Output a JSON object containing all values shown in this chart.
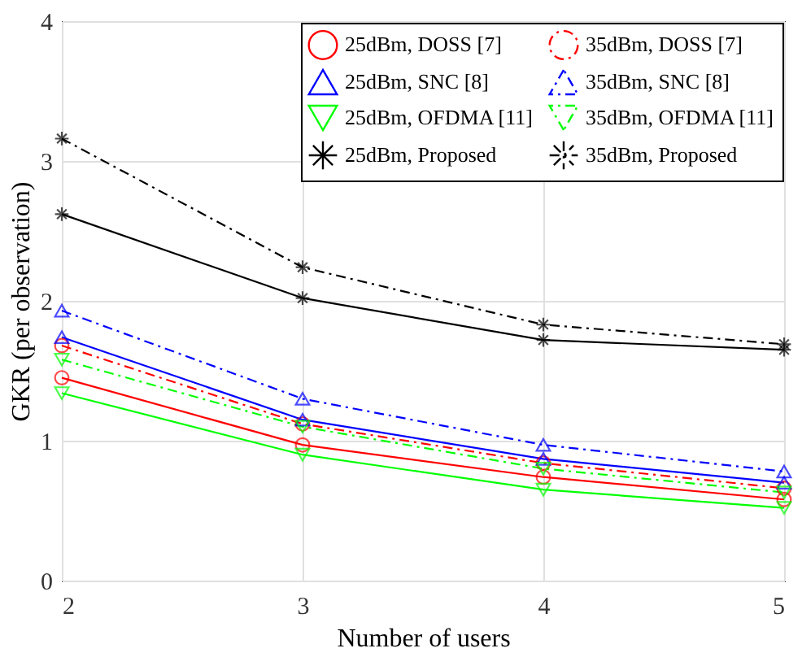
{
  "chart_data": {
    "type": "line",
    "xlabel": "Number of users",
    "ylabel": "GKR (per observation)",
    "x": [
      2,
      3,
      4,
      5
    ],
    "xlim": [
      2,
      5
    ],
    "xticks": [
      2,
      3,
      4,
      5
    ],
    "ylim": [
      0,
      4
    ],
    "yticks": [
      0,
      1,
      2,
      3,
      4
    ],
    "grid": true,
    "legend": "top right",
    "series": [
      {
        "name": "25dBm, DOSS [7]",
        "color": "#ff0000",
        "marker": "circle",
        "line_style": "solid",
        "values": [
          1.45,
          0.97,
          0.74,
          0.58
        ]
      },
      {
        "name": "35dBm, DOSS [7]",
        "color": "#ff0000",
        "marker": "circle",
        "line_style": "dashed",
        "values": [
          1.68,
          1.12,
          0.84,
          0.66
        ]
      },
      {
        "name": "25dBm, SNC [8]",
        "color": "#0000ff",
        "marker": "triangle",
        "line_style": "solid",
        "values": [
          1.74,
          1.15,
          0.87,
          0.7
        ]
      },
      {
        "name": "35dBm, SNC [8]",
        "color": "#0000ff",
        "marker": "triangle",
        "line_style": "dashed",
        "values": [
          1.93,
          1.3,
          0.97,
          0.78
        ]
      },
      {
        "name": "25dBm, OFDMA [11]",
        "color": "#00ff00",
        "marker": "triangle-down",
        "line_style": "solid",
        "values": [
          1.34,
          0.9,
          0.65,
          0.52
        ]
      },
      {
        "name": "35dBm, OFDMA [11]",
        "color": "#00ff00",
        "marker": "triangle-down",
        "line_style": "dashed",
        "values": [
          1.58,
          1.1,
          0.8,
          0.63
        ]
      },
      {
        "name": "25dBm, Proposed",
        "color": "#000000",
        "marker": "cross",
        "line_style": "solid",
        "values": [
          2.62,
          2.02,
          1.72,
          1.65
        ]
      },
      {
        "name": "35dBm, Proposed",
        "color": "#000000",
        "marker": "cross",
        "line_style": "dashed",
        "values": [
          3.16,
          2.24,
          1.83,
          1.69
        ]
      }
    ]
  }
}
